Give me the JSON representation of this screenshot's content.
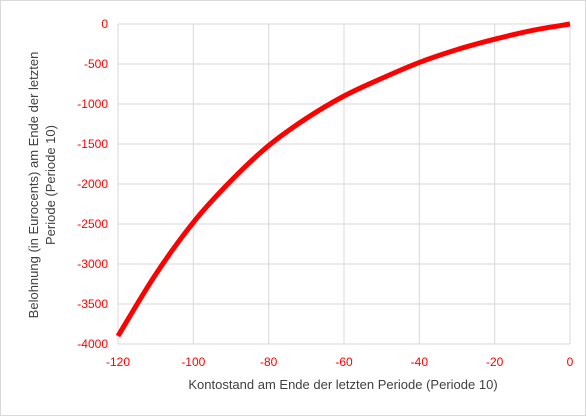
{
  "chart_data": {
    "type": "line",
    "title": "",
    "xlabel": "Kontostand am Ende der letzten Periode (Periode 10)",
    "ylabel_lines": [
      "Belohnung (in Eurocents) am Ende der letzten",
      "Periode (Periode 10)"
    ],
    "xlim": [
      -120,
      0
    ],
    "ylim": [
      -4000,
      0
    ],
    "x_ticks": [
      -120,
      -100,
      -80,
      -60,
      -40,
      -20,
      0
    ],
    "y_ticks": [
      0,
      -500,
      -1000,
      -1500,
      -2000,
      -2500,
      -3000,
      -3500,
      -4000
    ],
    "x_tick_labels": [
      "-120",
      "-100",
      "-80",
      "-60",
      "-40",
      "-20",
      "0"
    ],
    "y_tick_labels": [
      "0",
      "-500",
      "-1000",
      "-1500",
      "-2000",
      "-2500",
      "-3000",
      "-3500",
      "-4000"
    ],
    "grid": true,
    "line_color": "#ff0000",
    "tick_label_color": "#ff0000",
    "series": [
      {
        "x": [
          -120,
          -110,
          -100,
          -90,
          -80,
          -70,
          -60,
          -50,
          -40,
          -30,
          -20,
          -10,
          0
        ],
        "y": [
          -3900,
          -3130,
          -2480,
          -1960,
          -1520,
          -1180,
          -900,
          -680,
          -480,
          -320,
          -190,
          -80,
          0
        ]
      }
    ]
  }
}
